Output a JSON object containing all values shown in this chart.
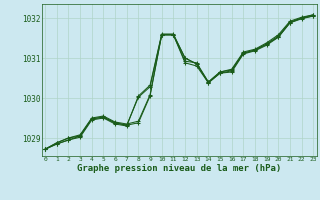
{
  "background_color": "#cce8f0",
  "grid_color": "#b0d4c8",
  "line_color": "#1a5c1a",
  "marker_color": "#1a5c1a",
  "xlabel": "Graphe pression niveau de la mer (hPa)",
  "xlabel_fontsize": 6.5,
  "yticks": [
    1029,
    1030,
    1031,
    1032
  ],
  "xticks": [
    0,
    1,
    2,
    3,
    4,
    5,
    6,
    7,
    8,
    9,
    10,
    11,
    12,
    13,
    14,
    15,
    16,
    17,
    18,
    19,
    20,
    21,
    22,
    23
  ],
  "xlim": [
    -0.3,
    23.3
  ],
  "ylim": [
    1028.55,
    1032.35
  ],
  "series": [
    [
      1028.72,
      1028.88,
      1029.0,
      1029.05,
      1029.48,
      1029.52,
      1029.38,
      1029.32,
      1029.38,
      1030.05,
      1031.58,
      1031.58,
      1030.88,
      1030.8,
      1030.38,
      1030.62,
      1030.65,
      1031.1,
      1031.18,
      1031.32,
      1031.52,
      1031.88,
      1032.0,
      1032.05
    ],
    [
      1028.72,
      1028.85,
      1028.95,
      1029.02,
      1029.45,
      1029.5,
      1029.35,
      1029.3,
      1030.05,
      1030.32,
      1031.6,
      1031.6,
      1031.0,
      1030.85,
      1030.38,
      1030.62,
      1030.68,
      1031.12,
      1031.2,
      1031.35,
      1031.52,
      1031.88,
      1031.98,
      1032.05
    ],
    [
      1028.72,
      1028.88,
      1029.0,
      1029.08,
      1029.5,
      1029.55,
      1029.4,
      1029.35,
      1029.42,
      1030.08,
      1031.58,
      1031.58,
      1031.0,
      1030.85,
      1030.4,
      1030.65,
      1030.72,
      1031.15,
      1031.22,
      1031.38,
      1031.58,
      1031.92,
      1032.02,
      1032.08
    ],
    [
      1028.72,
      1028.85,
      1028.95,
      1029.05,
      1029.48,
      1029.52,
      1029.38,
      1029.32,
      1030.02,
      1030.28,
      1031.58,
      1031.58,
      1030.92,
      1030.88,
      1030.4,
      1030.65,
      1030.7,
      1031.12,
      1031.2,
      1031.35,
      1031.55,
      1031.9,
      1032.0,
      1032.08
    ]
  ]
}
